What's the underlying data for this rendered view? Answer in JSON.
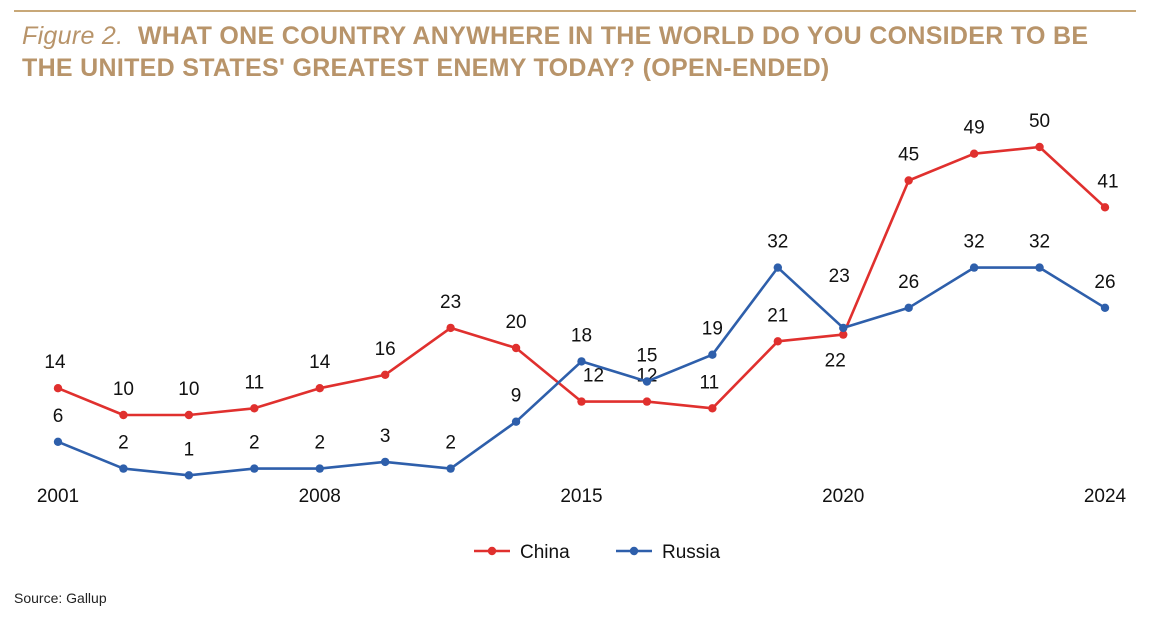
{
  "title": {
    "figure_label": "Figure 2.",
    "text": "WHAT ONE COUNTRY ANYWHERE IN THE WORLD DO YOU CONSIDER TO BE THE UNITED STATES' GREATEST ENEMY TODAY? (OPEN-ENDED)"
  },
  "source": "Source: Gallup",
  "chart_data": {
    "type": "line",
    "title": "WHAT ONE COUNTRY ANYWHERE IN THE WORLD DO YOU CONSIDER TO BE THE UNITED STATES' GREATEST ENEMY TODAY? (OPEN-ENDED)",
    "xlabel": "",
    "ylabel": "",
    "x_tick_labels": [
      "2001",
      "2008",
      "2015",
      "2020",
      "2024"
    ],
    "x_tick_label_positions": [
      1,
      5,
      9,
      13,
      17
    ],
    "ylim": [
      0,
      50
    ],
    "grid": false,
    "legend": {
      "placement": "bottom-center",
      "entries": [
        "China",
        "Russia"
      ]
    },
    "point_count": 17,
    "series": [
      {
        "name": "China",
        "color": "#e0302e",
        "values": [
          14,
          10,
          10,
          11,
          14,
          16,
          23,
          20,
          12,
          12,
          11,
          21,
          22,
          45,
          49,
          50,
          41
        ]
      },
      {
        "name": "Russia",
        "color": "#2e5fab",
        "values": [
          6,
          2,
          1,
          2,
          2,
          3,
          2,
          9,
          18,
          15,
          19,
          32,
          23,
          26,
          32,
          32,
          26
        ]
      }
    ]
  }
}
